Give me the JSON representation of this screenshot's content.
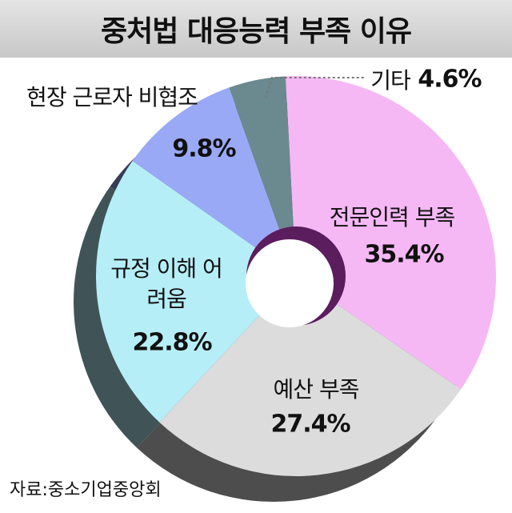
{
  "chart_data": {
    "type": "pie",
    "title": "중처법 대응능력 부족 이유",
    "source": "자료:중소기업중앙회",
    "categories": [
      "전문인력 부족",
      "예산 부족",
      "규정 이해 어려움",
      "현장 근로자 비협조",
      "기타"
    ],
    "values": [
      35.4,
      27.4,
      22.8,
      9.8,
      4.6
    ],
    "value_labels": [
      "35.4%",
      "27.4%",
      "22.8%",
      "9.8%",
      "4.6%"
    ],
    "colors": [
      "#f5b8f5",
      "#dcdcdc",
      "#b6eef8",
      "#9aa9f5",
      "#6b8a8f"
    ]
  }
}
